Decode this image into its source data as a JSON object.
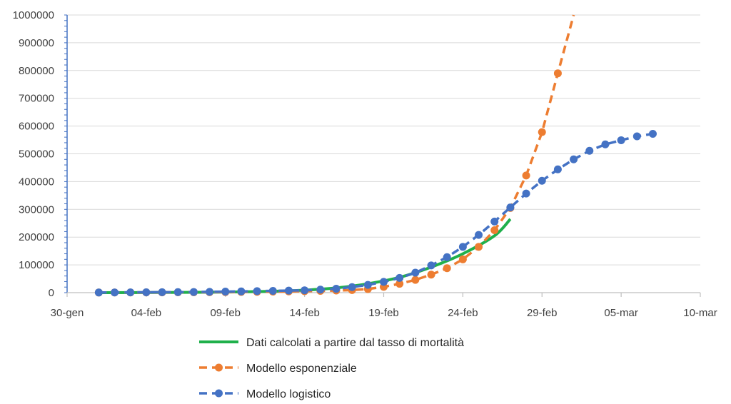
{
  "chart_data": {
    "type": "line",
    "title": "",
    "xlabel": "",
    "ylabel": "",
    "ylim": [
      0,
      1000000
    ],
    "xlim": [
      "2020-01-30",
      "2020-03-10"
    ],
    "grid": true,
    "legend_position": "bottom",
    "y_ticks": [
      0,
      100000,
      200000,
      300000,
      400000,
      500000,
      600000,
      700000,
      800000,
      900000,
      1000000
    ],
    "y_tick_labels": [
      "0",
      "100000",
      "200000",
      "300000",
      "400000",
      "500000",
      "600000",
      "700000",
      "800000",
      "900000",
      "1000000"
    ],
    "x_ticks": [
      "2020-01-30",
      "2020-02-04",
      "2020-02-09",
      "2020-02-14",
      "2020-02-19",
      "2020-02-24",
      "2020-02-29",
      "2020-03-05",
      "2020-03-10"
    ],
    "x_tick_labels": [
      "30-gen",
      "04-feb",
      "09-feb",
      "14-feb",
      "19-feb",
      "24-feb",
      "29-feb",
      "05-mar",
      "10-mar"
    ],
    "series": [
      {
        "name": "Dati calcolati a partire dal tasso di mortalità",
        "color": "#1fb04b",
        "style": "solid",
        "markers": false,
        "points": [
          {
            "x": "2020-02-01",
            "y": 0
          },
          {
            "x": "2020-02-05",
            "y": 500
          },
          {
            "x": "2020-02-09",
            "y": 2000
          },
          {
            "x": "2020-02-12",
            "y": 5000
          },
          {
            "x": "2020-02-14",
            "y": 9000
          },
          {
            "x": "2020-02-16",
            "y": 17000
          },
          {
            "x": "2020-02-18",
            "y": 32000
          },
          {
            "x": "2020-02-20",
            "y": 55000
          },
          {
            "x": "2020-02-22",
            "y": 92000
          },
          {
            "x": "2020-02-24",
            "y": 140000
          },
          {
            "x": "2020-02-26",
            "y": 205000
          },
          {
            "x": "2020-02-27",
            "y": 265000
          }
        ]
      },
      {
        "name": "Modello esponenziale",
        "color": "#ed7d31",
        "style": "dashed",
        "markers": true,
        "points": [
          {
            "x": "2020-02-01",
            "y": 500
          },
          {
            "x": "2020-02-02",
            "y": 600
          },
          {
            "x": "2020-02-03",
            "y": 700
          },
          {
            "x": "2020-02-04",
            "y": 850
          },
          {
            "x": "2020-02-05",
            "y": 1000
          },
          {
            "x": "2020-02-06",
            "y": 1200
          },
          {
            "x": "2020-02-07",
            "y": 1450
          },
          {
            "x": "2020-02-08",
            "y": 1750
          },
          {
            "x": "2020-02-09",
            "y": 2100
          },
          {
            "x": "2020-02-10",
            "y": 2500
          },
          {
            "x": "2020-02-11",
            "y": 3000
          },
          {
            "x": "2020-02-12",
            "y": 3700
          },
          {
            "x": "2020-02-13",
            "y": 4400
          },
          {
            "x": "2020-02-14",
            "y": 5300
          },
          {
            "x": "2020-02-15",
            "y": 6400
          },
          {
            "x": "2020-02-16",
            "y": 7700
          },
          {
            "x": "2020-02-17",
            "y": 9300
          },
          {
            "x": "2020-02-18",
            "y": 13000
          },
          {
            "x": "2020-02-19",
            "y": 21000
          },
          {
            "x": "2020-02-20",
            "y": 32000
          },
          {
            "x": "2020-02-21",
            "y": 46000
          },
          {
            "x": "2020-02-22",
            "y": 65000
          },
          {
            "x": "2020-02-23",
            "y": 88000
          },
          {
            "x": "2020-02-24",
            "y": 120000
          },
          {
            "x": "2020-02-25",
            "y": 165000
          },
          {
            "x": "2020-02-26",
            "y": 225000
          },
          {
            "x": "2020-02-27",
            "y": 305000
          },
          {
            "x": "2020-02-28",
            "y": 422000
          },
          {
            "x": "2020-02-29",
            "y": 578000
          },
          {
            "x": "2020-03-01",
            "y": 790000
          },
          {
            "x": "2020-03-02",
            "y": 1000000
          }
        ]
      },
      {
        "name": "Modello logistico",
        "color": "#4472c4",
        "style": "dashed",
        "markers": true,
        "points": [
          {
            "x": "2020-02-01",
            "y": 500
          },
          {
            "x": "2020-02-02",
            "y": 700
          },
          {
            "x": "2020-02-03",
            "y": 900
          },
          {
            "x": "2020-02-04",
            "y": 1200
          },
          {
            "x": "2020-02-05",
            "y": 1500
          },
          {
            "x": "2020-02-06",
            "y": 1900
          },
          {
            "x": "2020-02-07",
            "y": 2400
          },
          {
            "x": "2020-02-08",
            "y": 3000
          },
          {
            "x": "2020-02-09",
            "y": 3700
          },
          {
            "x": "2020-02-10",
            "y": 4500
          },
          {
            "x": "2020-02-11",
            "y": 5500
          },
          {
            "x": "2020-02-12",
            "y": 6500
          },
          {
            "x": "2020-02-13",
            "y": 7500
          },
          {
            "x": "2020-02-14",
            "y": 8500
          },
          {
            "x": "2020-02-15",
            "y": 11000
          },
          {
            "x": "2020-02-16",
            "y": 14000
          },
          {
            "x": "2020-02-17",
            "y": 20000
          },
          {
            "x": "2020-02-18",
            "y": 28000
          },
          {
            "x": "2020-02-19",
            "y": 39000
          },
          {
            "x": "2020-02-20",
            "y": 53000
          },
          {
            "x": "2020-02-21",
            "y": 72000
          },
          {
            "x": "2020-02-22",
            "y": 98000
          },
          {
            "x": "2020-02-23",
            "y": 128000
          },
          {
            "x": "2020-02-24",
            "y": 165000
          },
          {
            "x": "2020-02-25",
            "y": 208000
          },
          {
            "x": "2020-02-26",
            "y": 256000
          },
          {
            "x": "2020-02-27",
            "y": 307000
          },
          {
            "x": "2020-02-28",
            "y": 357000
          },
          {
            "x": "2020-02-29",
            "y": 403000
          },
          {
            "x": "2020-03-01",
            "y": 444000
          },
          {
            "x": "2020-03-02",
            "y": 480000
          },
          {
            "x": "2020-03-03",
            "y": 511000
          },
          {
            "x": "2020-03-04",
            "y": 534000
          },
          {
            "x": "2020-03-05",
            "y": 549000
          },
          {
            "x": "2020-03-06",
            "y": 563000
          },
          {
            "x": "2020-03-07",
            "y": 572000
          }
        ]
      }
    ]
  }
}
